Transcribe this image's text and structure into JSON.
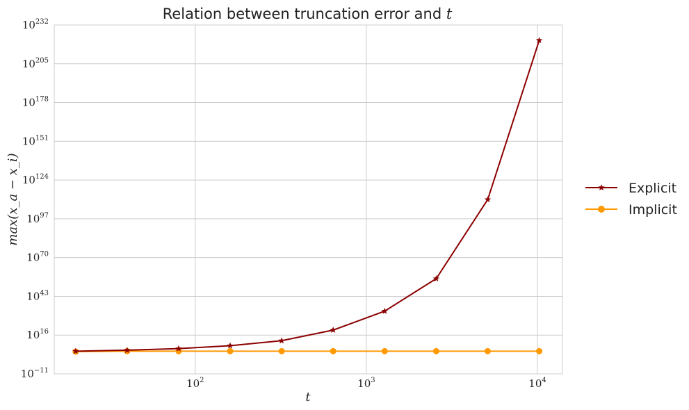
{
  "chart_data": {
    "type": "line",
    "title": "Relation between truncation error and ",
    "title_var": "t",
    "xlabel": "t",
    "ylabel": "max(x_a − x_i)",
    "x_scale": "log",
    "y_scale": "log",
    "xlim": [
      15,
      14000
    ],
    "ylim_exponent": [
      -11,
      232
    ],
    "x_ticks": [
      {
        "base": "10",
        "exp": "2",
        "value": 100
      },
      {
        "base": "10",
        "exp": "3",
        "value": 1000
      },
      {
        "base": "10",
        "exp": "4",
        "value": 10000
      }
    ],
    "y_ticks": [
      {
        "base": "10",
        "exp": "−11",
        "value": -11
      },
      {
        "base": "10",
        "exp": "16",
        "value": 16
      },
      {
        "base": "10",
        "exp": "43",
        "value": 43
      },
      {
        "base": "10",
        "exp": "70",
        "value": 70
      },
      {
        "base": "10",
        "exp": "97",
        "value": 97
      },
      {
        "base": "10",
        "exp": "124",
        "value": 124
      },
      {
        "base": "10",
        "exp": "151",
        "value": 151
      },
      {
        "base": "10",
        "exp": "178",
        "value": 178
      },
      {
        "base": "10",
        "exp": "205",
        "value": 205
      },
      {
        "base": "10",
        "exp": "232",
        "value": 232
      }
    ],
    "grid": true,
    "legend_position": "right",
    "series": [
      {
        "name": "Explicit",
        "color": "#8b0000",
        "marker": "star",
        "x": [
          20,
          40,
          80,
          160,
          320,
          640,
          1280,
          2560,
          5120,
          10240
        ],
        "y_exponent": [
          4.8,
          5.5,
          6.6,
          8.6,
          12.1,
          19.5,
          32.7,
          55.3,
          110.4,
          221.3
        ]
      },
      {
        "name": "Implicit",
        "color": "#ff9900",
        "marker": "circle",
        "x": [
          20,
          40,
          80,
          160,
          320,
          640,
          1280,
          2560,
          5120,
          10240
        ],
        "y_exponent": [
          4.5,
          4.8,
          4.8,
          4.8,
          4.8,
          4.8,
          4.8,
          4.8,
          4.8,
          4.8
        ]
      }
    ]
  }
}
